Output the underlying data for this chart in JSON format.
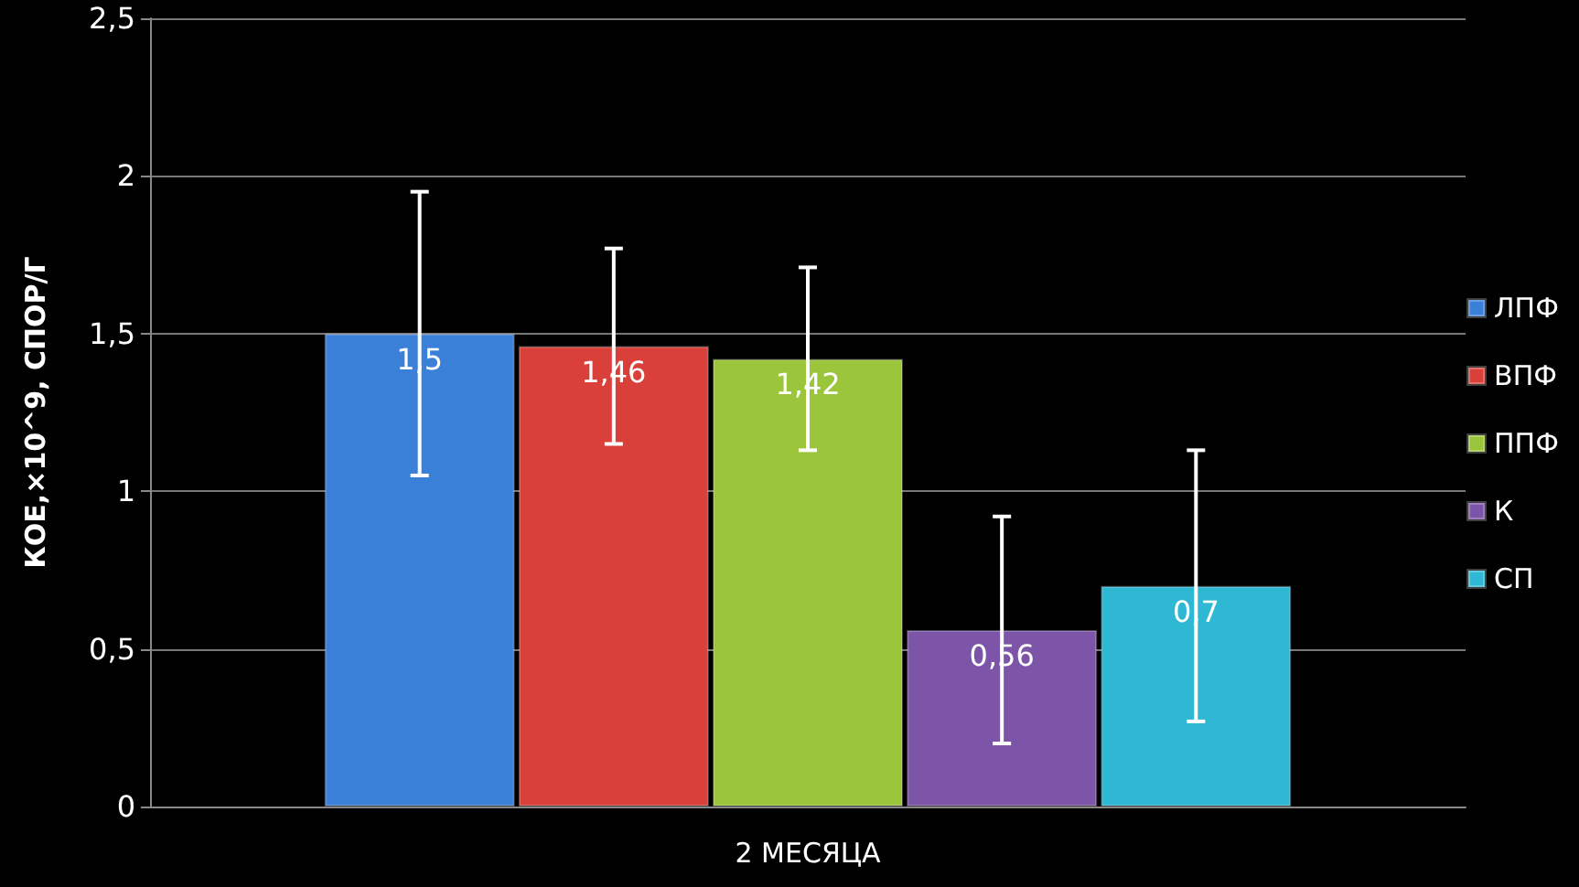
{
  "chart_data": {
    "type": "bar",
    "ylabel": "КОЕ,×10^9, СПОР/Г",
    "categories": [
      "2 МЕСЯЦА"
    ],
    "series": [
      {
        "name": "ЛПФ",
        "color": "#3a7fd8",
        "values": [
          1.5
        ],
        "errors": [
          0.45
        ],
        "value_labels": [
          "1,5"
        ]
      },
      {
        "name": "ВПФ",
        "color": "#d9403a",
        "values": [
          1.46
        ],
        "errors": [
          0.31
        ],
        "value_labels": [
          "1,46"
        ]
      },
      {
        "name": "ППФ",
        "color": "#9bc53b",
        "values": [
          1.42
        ],
        "errors": [
          0.29
        ],
        "value_labels": [
          "1,42"
        ]
      },
      {
        "name": "К",
        "color": "#7d55a8",
        "values": [
          0.56
        ],
        "errors": [
          0.36
        ],
        "value_labels": [
          "0,56"
        ]
      },
      {
        "name": "СП",
        "color": "#2fb8d4",
        "values": [
          0.7
        ],
        "errors": [
          0.43
        ],
        "value_labels": [
          "0,7"
        ]
      }
    ],
    "ylim": [
      0,
      2.5
    ],
    "yticks": [
      0,
      {
        "value": 0.5,
        "label": "0,5"
      },
      1,
      {
        "value": 1.5,
        "label": "1,5"
      },
      2,
      {
        "value": 2.5,
        "label": "2,5"
      }
    ],
    "grid": "y",
    "legend": "right"
  }
}
